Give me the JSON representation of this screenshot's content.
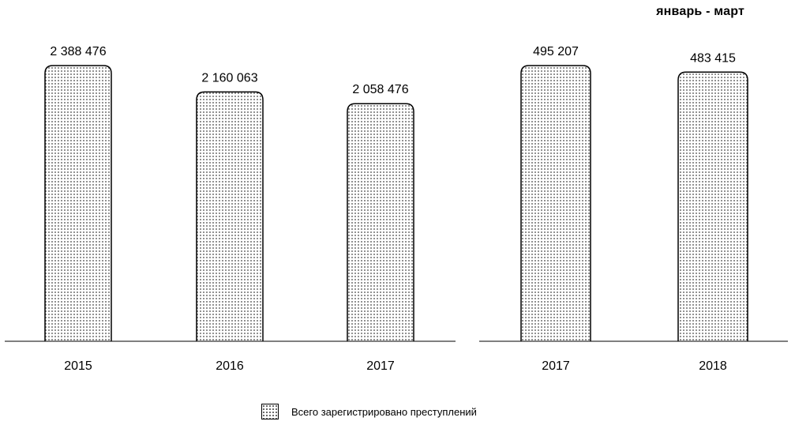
{
  "chart_data": [
    {
      "type": "bar",
      "categories": [
        "2015",
        "2016",
        "2017"
      ],
      "series": [
        {
          "name": "Всего зарегистрировано преступлений",
          "values": [
            2388476,
            2160063,
            2058476
          ],
          "labels": [
            "2 388 476",
            "2 160 063",
            "2 058 476"
          ]
        }
      ],
      "title": "",
      "xlabel": "",
      "ylabel": "",
      "ylim": [
        0,
        2388476
      ],
      "grid": false
    },
    {
      "type": "bar",
      "categories": [
        "2017",
        "2018"
      ],
      "series": [
        {
          "name": "Всего зарегистрировано преступлений",
          "values": [
            495207,
            483415
          ],
          "labels": [
            "495 207",
            "483 415"
          ]
        }
      ],
      "title": "январь - март",
      "xlabel": "",
      "ylabel": "",
      "ylim": [
        0,
        495207
      ],
      "grid": false
    }
  ],
  "legend": {
    "label": "Всего зарегистрировано преступлений",
    "placement": "bottom-center"
  },
  "colors": {
    "bar_fill": "#ffffff",
    "bar_dots": "#444444",
    "bar_stroke": "#000000",
    "axis": "#000000"
  }
}
